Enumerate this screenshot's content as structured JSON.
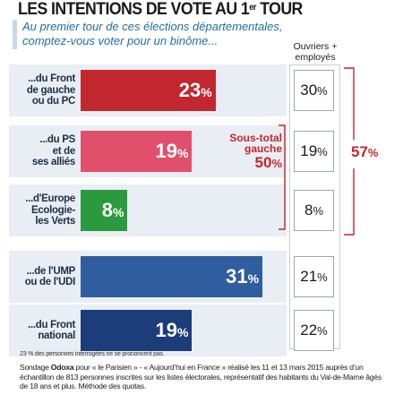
{
  "title": {
    "main": "LES INTENTIONS DE VOTE AU 1",
    "sup": "er",
    "end": " TOUR"
  },
  "subtitle": "Au premier tour de ces élections départementales, comptez-vous voter pour un  binôme...",
  "column_header": {
    "line1": "Ouvriers +",
    "line2": "employés"
  },
  "subtotal": {
    "line1": "Sous-total",
    "line2": "gauche",
    "value": "50",
    "unit": "%"
  },
  "right_total": {
    "value": "57",
    "unit": "%"
  },
  "percent_sign": "%",
  "note": "23 % des personnes interrogées ne se prononcent pas.",
  "source": {
    "prefix": "Sondage ",
    "pollster": "Odoxa",
    "rest": " pour « le Parisien » - « Aujourd’hui en France » réalisé les 11 et 13 mars 2015 auprès d’un échantillon de 813 personnes inscrites sur les listes électorales, représentatif des habitants du Val-de-Marne âgés de 18 ans et plus. Méthode des quotas."
  },
  "colors": {
    "left": "#c1272d",
    "ps": "#e0506b",
    "eelv": "#2b9a3e",
    "right": "#2f5d9e",
    "fn": "#1d3c7a",
    "accent_red": "#c1272d",
    "panel": "#e9eef4"
  },
  "chart_data": {
    "type": "bar",
    "orientation": "horizontal",
    "categories": [
      "...du Front de gauche ou du PC",
      "...du PS et de ses alliés",
      "...d'Europe Ecologie-les Verts",
      "...de l'UMP ou de l'UDI",
      "...du Front national"
    ],
    "category_lines": [
      [
        "...du Front",
        "de gauche",
        "ou du PC"
      ],
      [
        "...du PS",
        "et de",
        "ses alliés"
      ],
      [
        "...d'Europe",
        "Ecologie-",
        "les Verts"
      ],
      [
        "...de l'UMP",
        "ou de l'UDI"
      ],
      [
        "...du Front",
        "national"
      ]
    ],
    "series": [
      {
        "name": "",
        "values": [
          23,
          19,
          8,
          31,
          19
        ]
      },
      {
        "name": "Ouvriers + employés",
        "values": [
          30,
          19,
          8,
          21,
          22
        ]
      }
    ],
    "unit": "%",
    "annotations": [
      {
        "text": "Sous-total gauche 50%"
      },
      {
        "text": "57%"
      }
    ]
  }
}
